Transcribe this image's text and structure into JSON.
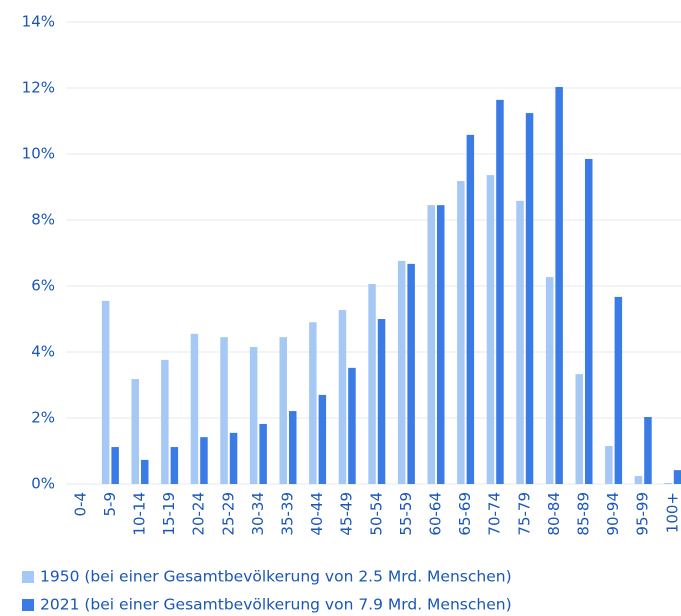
{
  "chart_data": {
    "type": "bar",
    "categories": [
      "0-4",
      "5-9",
      "10-14",
      "15-19",
      "20-24",
      "25-29",
      "30-34",
      "35-39",
      "40-44",
      "45-49",
      "50-54",
      "55-59",
      "60-64",
      "65-69",
      "70-74",
      "75-79",
      "80-84",
      "85-89",
      "90-94",
      "95-99",
      "100+"
    ],
    "series": [
      {
        "name": "1950 (bei einer Gesamtbevölkerung von 2.5 Mrd. Menschen)",
        "color": "#a6c8f5",
        "values": [
          0,
          5.55,
          3.18,
          3.76,
          4.55,
          4.45,
          4.15,
          4.45,
          4.9,
          5.27,
          6.06,
          6.76,
          8.45,
          9.18,
          9.36,
          8.58,
          6.27,
          3.33,
          1.15,
          0.24,
          0.03
        ]
      },
      {
        "name": "2021 (bei einer Gesamtbevölkerung von 7.9 Mrd. Menschen)",
        "color": "#3b7be6",
        "values": [
          0,
          1.12,
          0.73,
          1.12,
          1.42,
          1.55,
          1.82,
          2.21,
          2.7,
          3.52,
          5.0,
          6.67,
          8.45,
          10.58,
          11.64,
          11.24,
          12.03,
          9.85,
          5.67,
          2.03,
          0.42
        ]
      }
    ],
    "ylim": [
      0,
      14
    ],
    "yticks": [
      {
        "value": 0,
        "label": "0%"
      },
      {
        "value": 2,
        "label": "2%"
      },
      {
        "value": 4,
        "label": "4%"
      },
      {
        "value": 6,
        "label": "6%"
      },
      {
        "value": 8,
        "label": "8%"
      },
      {
        "value": 10,
        "label": "10%"
      },
      {
        "value": 12,
        "label": "12%"
      },
      {
        "value": 14,
        "label": "14%"
      }
    ],
    "grid": true
  }
}
